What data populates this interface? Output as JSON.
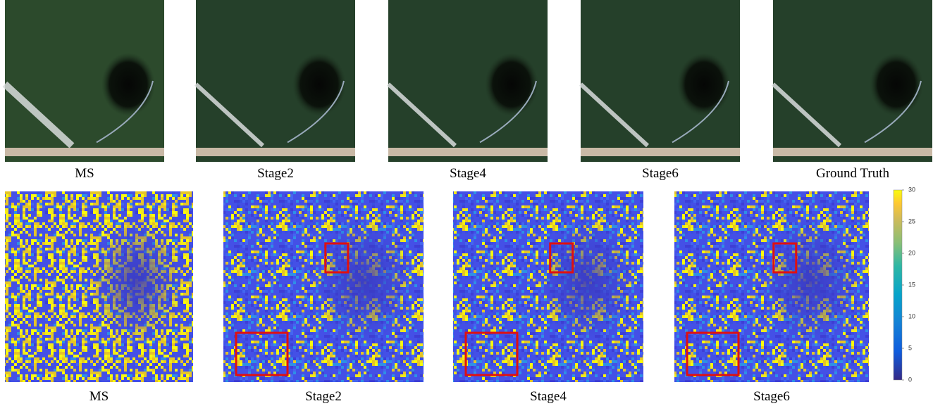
{
  "top_row": {
    "captions": [
      "MS",
      "Stage2",
      "Stage4",
      "Stage6",
      "Ground Truth"
    ]
  },
  "bottom_row": {
    "captions": [
      "MS",
      "Stage2",
      "Stage4",
      "Stage6"
    ]
  },
  "colorbar": {
    "ticks": [
      0,
      5,
      10,
      15,
      20,
      25,
      30
    ]
  }
}
